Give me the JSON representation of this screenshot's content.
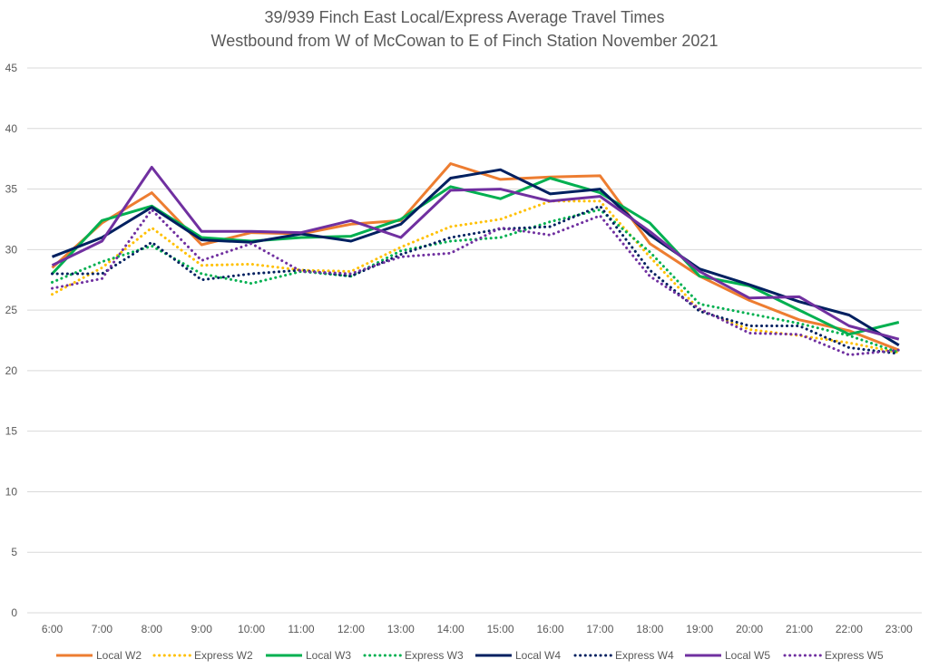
{
  "chart_data": {
    "type": "line",
    "title": "39/939 Finch East Local/Express Average Travel Times",
    "subtitle": "Westbound from W of McCowan to E of Finch Station November 2021",
    "xlabel": "",
    "ylabel": "",
    "ylim": [
      0,
      45
    ],
    "yticks": [
      0,
      5,
      10,
      15,
      20,
      25,
      30,
      35,
      40,
      45
    ],
    "grid": true,
    "legend_position": "bottom",
    "categories": [
      "6:00",
      "7:00",
      "8:00",
      "9:00",
      "10:00",
      "11:00",
      "12:00",
      "13:00",
      "14:00",
      "15:00",
      "16:00",
      "17:00",
      "18:00",
      "19:00",
      "20:00",
      "21:00",
      "22:00",
      "23:00"
    ],
    "series": [
      {
        "name": "Local W2",
        "color": "#ED7D31",
        "dash": "solid",
        "values": [
          28.5,
          32.2,
          34.7,
          30.4,
          31.4,
          31.3,
          32.1,
          32.4,
          37.1,
          35.8,
          36.0,
          36.1,
          30.5,
          27.8,
          25.8,
          24.2,
          23.3,
          21.7
        ]
      },
      {
        "name": "Express W2",
        "color": "#FFC000",
        "dash": "dotted",
        "values": [
          26.3,
          28.5,
          31.8,
          28.7,
          28.8,
          28.3,
          28.2,
          30.2,
          31.9,
          32.5,
          34.0,
          34.0,
          29.4,
          25.0,
          23.4,
          22.9,
          22.3,
          21.5
        ]
      },
      {
        "name": "Local W3",
        "color": "#00B050",
        "dash": "solid",
        "values": [
          28.0,
          32.4,
          33.6,
          31.0,
          30.7,
          31.0,
          31.1,
          32.5,
          35.2,
          34.2,
          35.9,
          34.7,
          32.2,
          27.8,
          27.0,
          25.0,
          23.0,
          24.0
        ]
      },
      {
        "name": "Express W3",
        "color": "#00B050",
        "dash": "dotted",
        "values": [
          27.3,
          29.0,
          30.3,
          28.0,
          27.2,
          28.2,
          27.8,
          29.9,
          30.7,
          31.0,
          32.3,
          33.3,
          29.8,
          25.5,
          24.7,
          23.9,
          22.9,
          21.5
        ]
      },
      {
        "name": "Local W4",
        "color": "#002060",
        "dash": "solid",
        "values": [
          29.4,
          31.0,
          33.5,
          30.8,
          30.6,
          31.3,
          30.7,
          32.1,
          35.9,
          36.6,
          34.6,
          35.0,
          31.2,
          28.4,
          27.1,
          25.7,
          24.6,
          22.1
        ]
      },
      {
        "name": "Express W4",
        "color": "#002060",
        "dash": "dotted",
        "values": [
          28.0,
          28.0,
          30.6,
          27.5,
          28.0,
          28.3,
          27.8,
          29.6,
          31.0,
          31.7,
          31.9,
          33.6,
          28.3,
          24.9,
          23.7,
          23.7,
          21.9,
          21.4
        ]
      },
      {
        "name": "Local W5",
        "color": "#7030A0",
        "dash": "solid",
        "values": [
          28.7,
          30.7,
          36.8,
          31.5,
          31.5,
          31.4,
          32.4,
          31.0,
          34.9,
          35.0,
          34.0,
          34.4,
          31.5,
          28.2,
          26.0,
          26.1,
          23.7,
          22.6
        ]
      },
      {
        "name": "Express W5",
        "color": "#7030A0",
        "dash": "dotted",
        "values": [
          26.8,
          27.6,
          33.3,
          29.1,
          30.5,
          28.2,
          28.0,
          29.4,
          29.7,
          31.8,
          31.2,
          32.8,
          27.8,
          25.1,
          23.1,
          23.0,
          21.3,
          21.7
        ]
      }
    ]
  }
}
